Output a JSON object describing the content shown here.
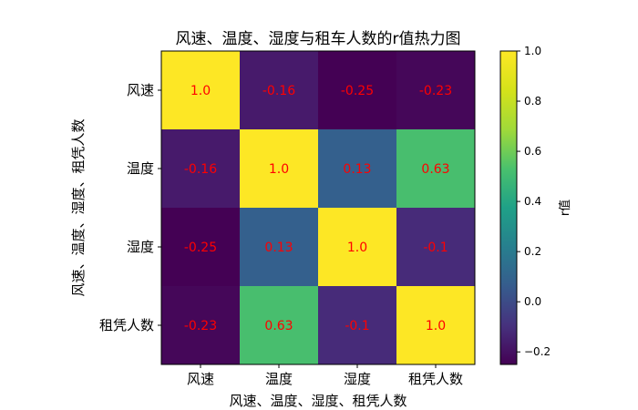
{
  "chart_data": {
    "type": "heatmap",
    "title": "风速、温度、湿度与租车人数的r值热力图",
    "xlabel": "风速、温度、湿度、租凭人数",
    "ylabel": "风速、温度、湿度、租凭人数",
    "x_categories": [
      "风速",
      "温度",
      "湿度",
      "租凭人数"
    ],
    "y_categories": [
      "风速",
      "温度",
      "湿度",
      "租凭人数"
    ],
    "values": [
      [
        1.0,
        -0.16,
        -0.25,
        -0.23
      ],
      [
        -0.16,
        1.0,
        0.13,
        0.63
      ],
      [
        -0.25,
        0.13,
        1.0,
        -0.1
      ],
      [
        -0.23,
        0.63,
        -0.1,
        1.0
      ]
    ],
    "cell_labels": [
      [
        "1.0",
        "-0.16",
        "-0.25",
        "-0.23"
      ],
      [
        "-0.16",
        "1.0",
        "0.13",
        "0.63"
      ],
      [
        "-0.25",
        "0.13",
        "1.0",
        "-0.1"
      ],
      [
        "-0.23",
        "0.63",
        "-0.1",
        "1.0"
      ]
    ],
    "value_range": [
      -0.25,
      1.0
    ],
    "colormap": "viridis",
    "annotation_color": "#ff0000",
    "colorbar": {
      "label": "r值",
      "ticks": [
        -0.2,
        0.0,
        0.2,
        0.4,
        0.6,
        0.8,
        1.0
      ],
      "tick_labels": [
        "−0.2",
        "0.0",
        "0.2",
        "0.4",
        "0.6",
        "0.8",
        "1.0"
      ],
      "position": "right"
    },
    "grid": false
  }
}
